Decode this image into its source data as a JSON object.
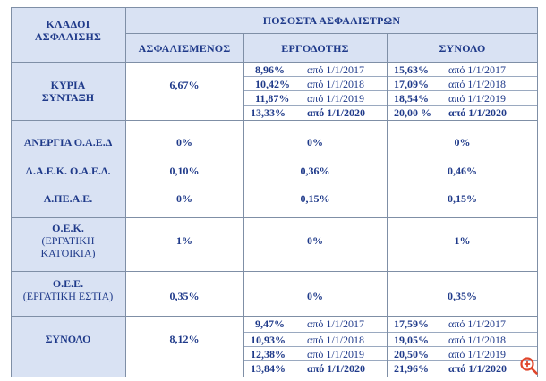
{
  "header": {
    "col1": [
      "ΚΛΑΔΟΙ",
      "ΑΣΦΑΛΙΣΗΣ"
    ],
    "group": "ΠΟΣΟΣΤΑ ΑΣΦΑΛΙΣΤΡΩΝ",
    "col2": "ΑΣΦΑΛΙΣΜΕΝΟΣ",
    "col3": "ΕΡΓΟΔΟΤΗΣ",
    "col4": "ΣΥΝΟΛΟ"
  },
  "rows": {
    "kyria": {
      "label": [
        "ΚΥΡΙΑ",
        "ΣΥΝΤΑΞΗ"
      ],
      "insured": "6,67%",
      "employer": [
        {
          "pct": "8,96%",
          "from": "από 1/1/2017"
        },
        {
          "pct": "10,42%",
          "from": "από 1/1/2018"
        },
        {
          "pct": "11,87%",
          "from": "από 1/1/2019"
        },
        {
          "pct": "13,33%",
          "from": "από 1/1/2020"
        }
      ],
      "total": [
        {
          "pct": "15,63%",
          "from": "από 1/1/2017"
        },
        {
          "pct": "17,09%",
          "from": "από 1/1/2018"
        },
        {
          "pct": "18,54%",
          "from": "από 1/1/2019"
        },
        {
          "pct": "20,00 %",
          "from": "από 1/1/2020"
        }
      ]
    },
    "anergia": {
      "label": "ΑΝΕΡΓΙΑ Ο.Α.Ε.Δ",
      "insured": "0%",
      "employer": "0%",
      "total": "0%"
    },
    "laek": {
      "label": "Λ.Α.Ε.Κ. Ο.Α.Ε.Δ.",
      "insured": "0,10%",
      "employer": "0,36%",
      "total": "0,46%"
    },
    "apeae": {
      "label": "Λ.ΠΕ.Α.Ε.",
      "insured": "0%",
      "employer": "0,15%",
      "total": "0,15%"
    },
    "oek": {
      "label": "Ο.Ε.Κ.",
      "sublabel": [
        "(ΕΡΓΑΤΙΚΗ",
        "ΚΑΤΟΙΚΙΑ)"
      ],
      "insured": "1%",
      "employer": "0%",
      "total": "1%"
    },
    "oee": {
      "label": "Ο.Ε.Ε.",
      "sublabel": "(ΕΡΓΑΤΙΚΗ ΕΣΤΙΑ)",
      "insured": "0,35%",
      "employer": "0%",
      "total": "0,35%"
    },
    "synolo": {
      "label": "ΣΥΝΟΛΟ",
      "insured": "8,12%",
      "employer": [
        {
          "pct": "9,47%",
          "from": "από 1/1/2017"
        },
        {
          "pct": "10,93%",
          "from": "από 1/1/2018"
        },
        {
          "pct": "12,38%",
          "from": "από 1/1/2019"
        },
        {
          "pct": "13,84%",
          "from": "από 1/1/2020"
        }
      ],
      "total": [
        {
          "pct": "17,59%",
          "from": "από 1/1/2017"
        },
        {
          "pct": "19,05%",
          "from": "από 1/1/2018"
        },
        {
          "pct": "20,50%",
          "from": "από 1/1/2019"
        },
        {
          "pct": "21,96%",
          "from": "από 1/1/2020"
        }
      ]
    }
  },
  "zoom_icon": "zoom-in-icon",
  "colors": {
    "text": "#1f3a8a",
    "band": "#d9e2f3",
    "border": "#7f8fa6",
    "zoom": "#e0452b"
  }
}
